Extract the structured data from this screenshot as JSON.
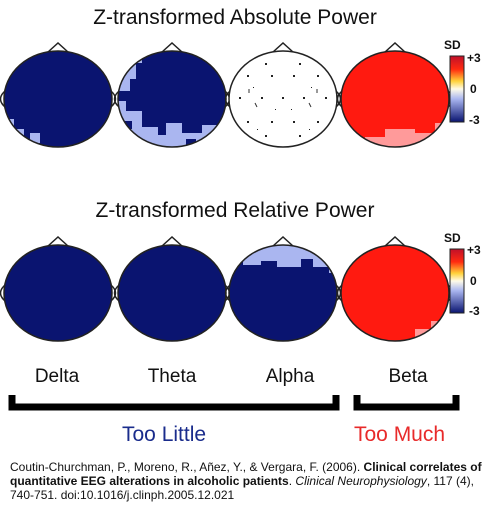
{
  "titles": {
    "absolute": "Z-transformed Absolute Power",
    "relative": "Z-transformed Relative Power"
  },
  "scale": {
    "unit": "SD",
    "ticks": [
      "+3",
      "0",
      "-3"
    ],
    "colors": [
      "#c0102a",
      "#ff2a10",
      "#ffd23a",
      "#fffbe8",
      "#aab6f0",
      "#0a1470"
    ]
  },
  "bands": [
    "Delta",
    "Theta",
    "Alpha",
    "Beta"
  ],
  "groups": {
    "too_little": "Too Little",
    "too_much": "Too Much"
  },
  "colors": {
    "dark_blue": "#0a1470",
    "light_blue": "#aab6f0",
    "red": "#ff1a10",
    "too_little_text": "#1a2c8c",
    "too_much_text": "#e82a2a"
  },
  "citation": {
    "authors": "Coutin-Churchman, P., Moreno, R., Añez, Y., & Vergara, F. (2006). ",
    "title": "Clinical correlates of quantitative EEG alterations in alcoholic patients",
    "journal": "Clinical Neurophysiology",
    "details": ", 117 (4), 740-751. doi:10.1016/j.clinph.2005.12.021"
  }
}
